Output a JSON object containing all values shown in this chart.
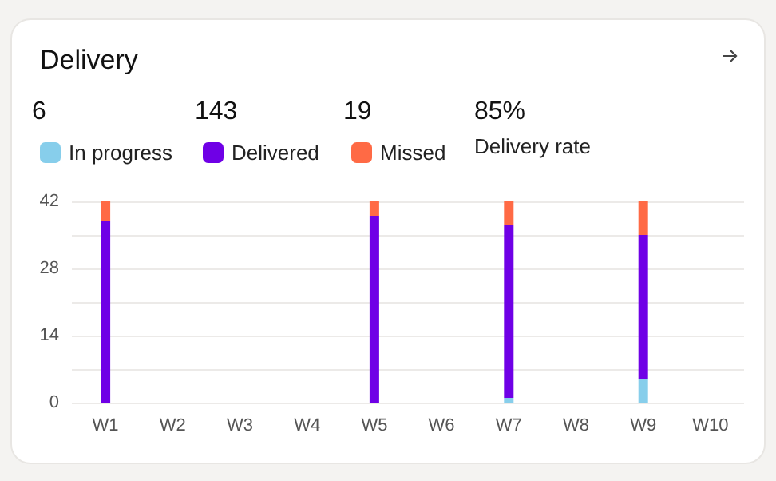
{
  "chart_data": {
    "type": "bar",
    "title": "Delivery",
    "stacked": true,
    "categories": [
      "W1",
      "W2",
      "W3",
      "W4",
      "W5",
      "W6",
      "W7",
      "W8",
      "W9",
      "W10"
    ],
    "series": [
      {
        "name": "In progress",
        "color": "#87ceeb",
        "values": [
          0,
          0,
          0,
          0,
          0,
          0,
          1,
          0,
          5,
          0
        ]
      },
      {
        "name": "Delivered",
        "color": "#6f00e6",
        "values": [
          38,
          0,
          0,
          0,
          39,
          0,
          36,
          0,
          30,
          0
        ]
      },
      {
        "name": "Missed",
        "color": "#ff6a45",
        "values": [
          4,
          0,
          0,
          0,
          3,
          0,
          5,
          0,
          7,
          0
        ]
      }
    ],
    "annotations": [
      "6",
      "143",
      "19",
      "85%",
      "Delivery rate"
    ],
    "ylim": [
      0,
      42
    ],
    "yticks": [
      0,
      {
        "value": 7,
        "label": null
      },
      14,
      {
        "value": 21,
        "label": null
      },
      28,
      {
        "value": 35,
        "label": null
      },
      42
    ],
    "grid": true,
    "legend": "top left"
  }
}
